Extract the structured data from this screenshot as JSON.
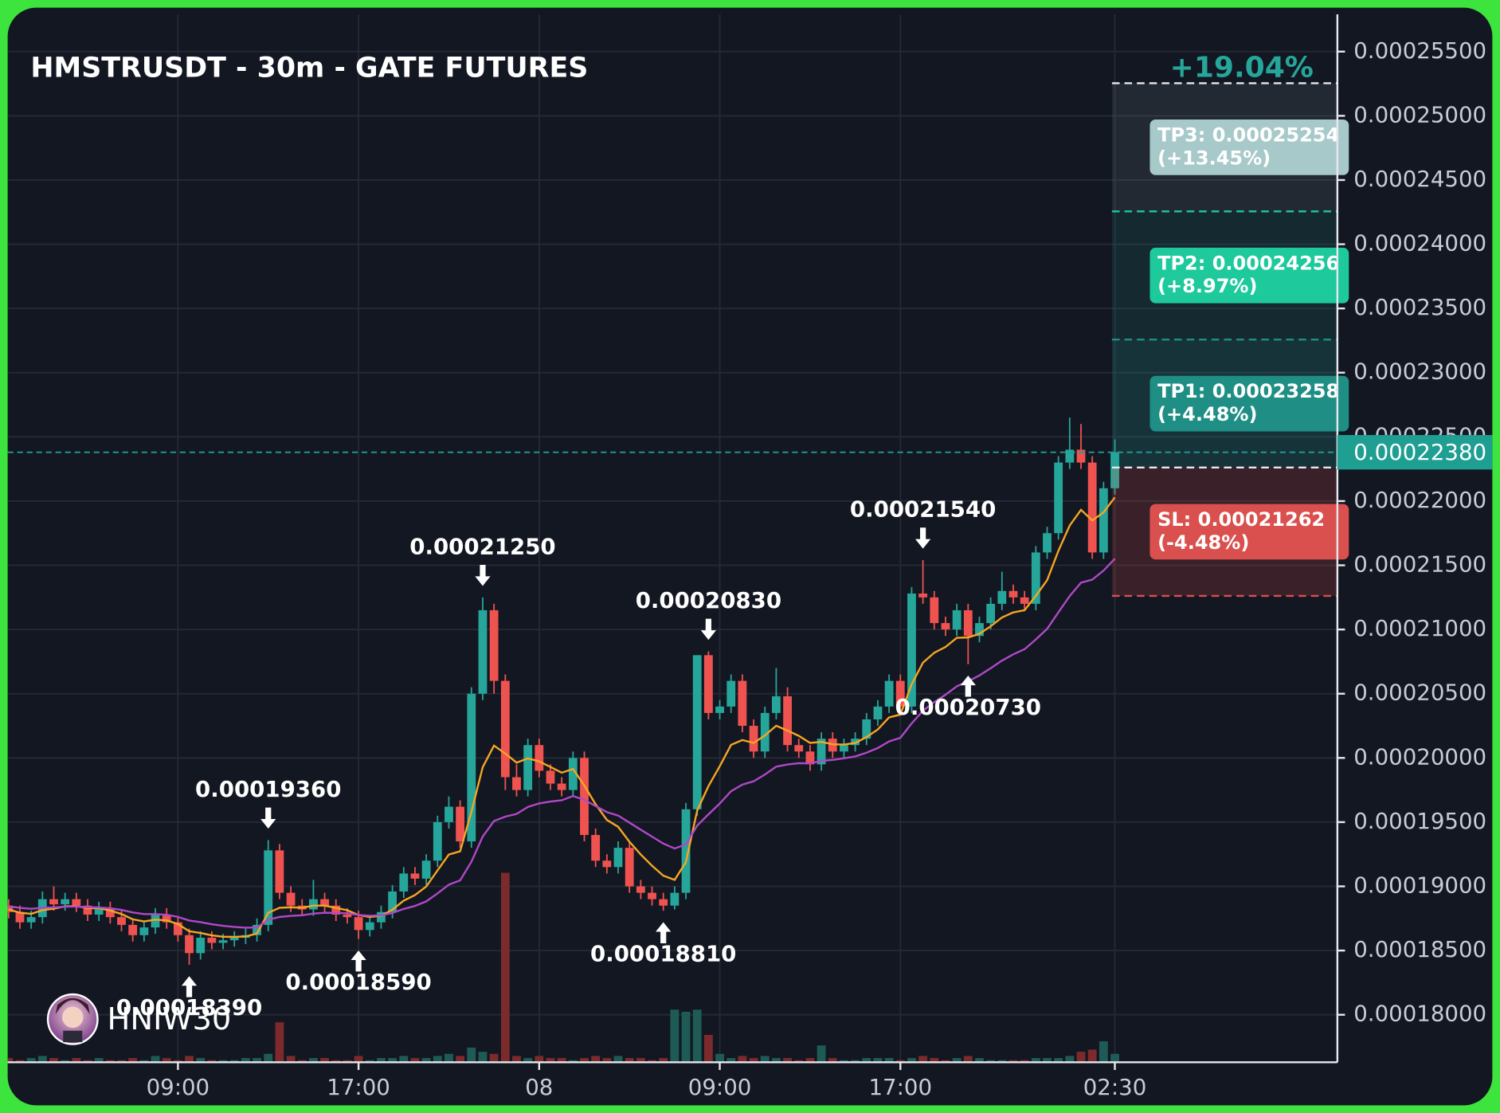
{
  "chart_data": {
    "type": "candlestick",
    "title": "HMSTRUSDT - 30m - GATE FUTURES",
    "categories": [
      null,
      null,
      null,
      null,
      null,
      null,
      null,
      null,
      null,
      null,
      null,
      null,
      null,
      null,
      null,
      "09:00",
      null,
      null,
      null,
      null,
      null,
      null,
      null,
      null,
      null,
      null,
      null,
      null,
      null,
      null,
      null,
      "17:00",
      null,
      null,
      null,
      null,
      null,
      null,
      null,
      null,
      null,
      null,
      null,
      null,
      null,
      null,
      null,
      "08",
      null,
      null,
      null,
      null,
      null,
      null,
      null,
      null,
      null,
      null,
      null,
      null,
      null,
      null,
      null,
      "09:00",
      null,
      null,
      null,
      null,
      null,
      null,
      null,
      null,
      null,
      null,
      null,
      null,
      null,
      null,
      null,
      "17:00",
      null,
      null,
      null,
      null,
      null,
      null,
      null,
      null,
      null,
      null,
      null,
      null,
      null,
      null,
      null,
      null,
      null,
      null,
      "02:30"
    ],
    "open": [
      0.0001885,
      0.000188,
      0.0001872,
      0.0001876,
      0.000189,
      0.0001886,
      0.000189,
      0.0001885,
      0.0001878,
      0.0001883,
      0.0001876,
      0.000187,
      0.0001862,
      0.0001868,
      0.0001878,
      0.0001872,
      0.0001862,
      0.0001848,
      0.000186,
      0.0001856,
      0.0001858,
      0.000186,
      0.0001862,
      0.000187,
      0.0001928,
      0.0001895,
      0.0001885,
      0.0001882,
      0.000189,
      0.0001885,
      0.0001878,
      0.0001876,
      0.0001866,
      0.0001872,
      0.000188,
      0.0001896,
      0.000191,
      0.0001906,
      0.000192,
      0.000195,
      0.0001962,
      0.0001935,
      0.000205,
      0.0002115,
      0.000206,
      0.0001985,
      0.0001975,
      0.000201,
      0.000199,
      0.000198,
      0.0001975,
      0.0002,
      0.000194,
      0.000192,
      0.0001915,
      0.000193,
      0.00019,
      0.0001895,
      0.000189,
      0.0001885,
      0.0001895,
      0.000196,
      0.000208,
      0.0002035,
      0.000204,
      0.000206,
      0.0002025,
      0.0002005,
      0.0002035,
      0.0002048,
      0.000201,
      0.0002005,
      0.0001995,
      0.0002015,
      0.0002005,
      0.000201,
      0.0002015,
      0.000203,
      0.000204,
      0.000206,
      0.000204,
      0.0002128,
      0.0002125,
      0.0002105,
      0.00021,
      0.0002115,
      0.0002095,
      0.0002105,
      0.000212,
      0.000213,
      0.0002125,
      0.000212,
      0.000216,
      0.0002175,
      0.000223,
      0.000224,
      0.000223,
      0.000216,
      0.000221
    ],
    "high": [
      0.000189,
      0.0001885,
      0.0001881,
      0.0001896,
      0.00019,
      0.0001895,
      0.0001895,
      0.000189,
      0.0001888,
      0.0001888,
      0.0001881,
      0.0001875,
      0.0001873,
      0.0001883,
      0.0001883,
      0.0001877,
      0.0001867,
      0.0001865,
      0.0001865,
      0.0001863,
      0.0001865,
      0.0001867,
      0.0001875,
      0.0001936,
      0.0001933,
      0.00019,
      0.000189,
      0.0001905,
      0.0001895,
      0.000189,
      0.0001883,
      0.0001881,
      0.0001877,
      0.0001885,
      0.0001901,
      0.0001915,
      0.0001915,
      0.0001925,
      0.0001955,
      0.000197,
      0.0001967,
      0.0002055,
      0.0002125,
      0.000212,
      0.0002065,
      0.0001995,
      0.0002015,
      0.0002015,
      0.0001995,
      0.0001985,
      0.0002005,
      0.0002005,
      0.0001945,
      0.0001925,
      0.0001935,
      0.0001935,
      0.0001905,
      0.00019,
      0.0001895,
      0.00019,
      0.0001965,
      0.000208,
      0.0002083,
      0.0002045,
      0.0002065,
      0.0002065,
      0.000203,
      0.000204,
      0.000207,
      0.0002055,
      0.0002015,
      0.000201,
      0.000202,
      0.000202,
      0.0002015,
      0.000202,
      0.0002035,
      0.0002045,
      0.0002065,
      0.0002065,
      0.0002133,
      0.0002154,
      0.000213,
      0.000211,
      0.000212,
      0.000212,
      0.000211,
      0.0002125,
      0.0002145,
      0.0002135,
      0.000213,
      0.0002165,
      0.000218,
      0.0002235,
      0.0002265,
      0.000226,
      0.0002235,
      0.0002215,
      0.0002248
    ],
    "low": [
      0.0001875,
      0.0001867,
      0.0001867,
      0.0001871,
      0.0001881,
      0.0001881,
      0.000188,
      0.0001873,
      0.0001873,
      0.0001871,
      0.0001865,
      0.0001857,
      0.0001857,
      0.0001863,
      0.0001867,
      0.0001857,
      0.0001839,
      0.0001843,
      0.0001851,
      0.0001851,
      0.0001853,
      0.0001855,
      0.0001857,
      0.0001865,
      0.000189,
      0.000188,
      0.0001877,
      0.0001877,
      0.000188,
      0.0001873,
      0.0001871,
      0.0001859,
      0.0001861,
      0.0001867,
      0.0001875,
      0.0001891,
      0.0001901,
      0.0001901,
      0.0001915,
      0.0001945,
      0.000193,
      0.000193,
      0.0002045,
      0.000205,
      0.0001975,
      0.000197,
      0.000197,
      0.0001985,
      0.0001975,
      0.000197,
      0.000197,
      0.0001935,
      0.0001915,
      0.000191,
      0.000191,
      0.0001895,
      0.000189,
      0.0001885,
      0.0001881,
      0.0001882,
      0.000189,
      0.0001955,
      0.000203,
      0.000203,
      0.0002035,
      0.000202,
      0.0002,
      0.0002,
      0.000203,
      0.0002005,
      0.0002,
      0.000199,
      0.000199,
      0.0002,
      0.0002,
      0.0002005,
      0.000201,
      0.0002025,
      0.0002035,
      0.0002035,
      0.0002035,
      0.000212,
      0.00021,
      0.0002095,
      0.0002095,
      0.0002073,
      0.000209,
      0.00021,
      0.0002115,
      0.000212,
      0.0002115,
      0.0002115,
      0.0002155,
      0.000217,
      0.0002225,
      0.0002225,
      0.0002155,
      0.0002155,
      0.0002205
    ],
    "close": [
      0.000188,
      0.0001872,
      0.0001876,
      0.000189,
      0.0001886,
      0.000189,
      0.0001885,
      0.0001878,
      0.0001883,
      0.0001876,
      0.000187,
      0.0001862,
      0.0001868,
      0.0001878,
      0.0001872,
      0.0001862,
      0.0001848,
      0.000186,
      0.0001856,
      0.0001858,
      0.000186,
      0.0001862,
      0.000187,
      0.0001928,
      0.0001895,
      0.0001885,
      0.0001882,
      0.000189,
      0.0001885,
      0.0001878,
      0.0001876,
      0.0001866,
      0.0001872,
      0.000188,
      0.0001896,
      0.000191,
      0.0001906,
      0.000192,
      0.000195,
      0.0001962,
      0.0001935,
      0.000205,
      0.0002115,
      0.000206,
      0.0001985,
      0.0001975,
      0.000201,
      0.000199,
      0.000198,
      0.0001975,
      0.0002,
      0.000194,
      0.000192,
      0.0001915,
      0.000193,
      0.00019,
      0.0001895,
      0.000189,
      0.0001885,
      0.0001895,
      0.000196,
      0.000208,
      0.0002035,
      0.000204,
      0.000206,
      0.0002025,
      0.0002005,
      0.0002035,
      0.0002048,
      0.000201,
      0.0002005,
      0.0001995,
      0.0002015,
      0.0002005,
      0.000201,
      0.0002015,
      0.000203,
      0.000204,
      0.000206,
      0.000204,
      0.0002128,
      0.0002125,
      0.0002105,
      0.00021,
      0.0002115,
      0.0002095,
      0.0002105,
      0.000212,
      0.000213,
      0.0002125,
      0.000212,
      0.000216,
      0.0002175,
      0.000223,
      0.000224,
      0.000223,
      0.000216,
      0.000221,
      0.0002238
    ],
    "up_color": "#26a69a",
    "down_color": "#ef5350",
    "volume": {
      "values": [
        2,
        1,
        2,
        3,
        2,
        1,
        2,
        1,
        2,
        1,
        1,
        2,
        1,
        3,
        2,
        1,
        3,
        2,
        1,
        1,
        1,
        2,
        2,
        4,
        19,
        3,
        1,
        2,
        2,
        1,
        1,
        3,
        1,
        2,
        2,
        3,
        2,
        2,
        3,
        4,
        3,
        7,
        5,
        4,
        90,
        3,
        2,
        3,
        2,
        2,
        1,
        2,
        3,
        2,
        3,
        2,
        2,
        1,
        2,
        25,
        24,
        25,
        13,
        4,
        2,
        3,
        2,
        3,
        2,
        2,
        1,
        2,
        8,
        2,
        1,
        1,
        2,
        2,
        2,
        1,
        2,
        3,
        2,
        1,
        2,
        3,
        2,
        1,
        1,
        1,
        1,
        2,
        2,
        2,
        3,
        5,
        6,
        10,
        4
      ],
      "ylim": [
        0,
        100
      ],
      "up_color": "#1e5b56",
      "down_color": "#7d2a2c"
    },
    "ma_lines": [
      {
        "color": "#f5a623",
        "values": [
          0.0001882,
          0.00018795,
          0.00018786,
          0.00018815,
          0.00018826,
          0.00018845,
          0.00018846,
          0.0001883,
          0.0001883,
          0.00018812,
          0.00018784,
          0.00018743,
          0.00018727,
          0.0001874,
          0.00018735,
          0.00018706,
          0.0001865,
          0.00018637,
          0.00018618,
          0.00018608,
          0.00018606,
          0.0001861,
          0.00018632,
          0.00018794,
          0.00018833,
          0.00018837,
          0.00018833,
          0.0001885,
          0.0001885,
          0.00018832,
          0.00018814,
          0.00018776,
          0.00018762,
          0.00018771,
          0.00018818,
          0.00018889,
          0.00018932,
          0.00018999,
          0.00019124,
          0.00019248,
          0.00019273,
          0.0001958,
          0.00019928,
          0.00020096,
          0.00020034,
          0.00019963,
          0.00019997,
          0.00019973,
          0.0001993,
          0.00019885,
          0.00019914,
          0.00019785,
          0.00019639,
          0.00019517,
          0.00019463,
          0.00019347,
          0.00019248,
          0.00019161,
          0.00019083,
          0.0001905,
          0.00019188,
          0.00019591,
          0.00019781,
          0.00019936,
          0.00020102,
          0.00020139,
          0.00020117,
          0.00020175,
          0.00020251,
          0.00020213,
          0.00020172,
          0.00020117,
          0.00020125,
          0.00020106,
          0.00020104,
          0.00020116,
          0.00020162,
          0.00020222,
          0.00020316,
          0.00020337,
          0.00020573,
          0.00020742,
          0.00020819,
          0.00020864,
          0.00020935,
          0.00020938,
          0.00020966,
          0.00021025,
          0.00021094,
          0.00021133,
          0.0002115,
          0.00021262,
          0.00021384,
          0.00021613,
          0.0002181,
          0.00021932,
          0.00021849,
          0.00021912,
          0.00022029
        ]
      },
      {
        "color": "#b048c8",
        "values": [
          0.00018845,
          0.00018832,
          0.00018825,
          0.00018833,
          0.00018836,
          0.00018842,
          0.00018843,
          0.00018837,
          0.00018836,
          0.00018829,
          0.00018816,
          0.00018796,
          0.00018784,
          0.00018784,
          0.00018778,
          0.00018762,
          0.00018734,
          0.00018721,
          0.00018705,
          0.00018693,
          0.00018684,
          0.00018678,
          0.0001868,
          0.0001874,
          0.00018761,
          0.0001877,
          0.00018775,
          0.00018788,
          0.00018794,
          0.00018793,
          0.0001879,
          0.00018777,
          0.00018771,
          0.00018774,
          0.00018793,
          0.00018824,
          0.00018848,
          0.00018883,
          0.00018945,
          0.00019013,
          0.00019047,
          0.00019192,
          0.00019388,
          0.00019509,
          0.00019543,
          0.00019564,
          0.00019618,
          0.00019646,
          0.00019661,
          0.0001967,
          0.00019703,
          0.00019673,
          0.00019626,
          0.00019578,
          0.00019551,
          0.00019496,
          0.00019441,
          0.00019387,
          0.00019333,
          0.00019295,
          0.00019326,
          0.00019473,
          0.00019561,
          0.00019645,
          0.00019741,
          0.00019792,
          0.00019818,
          0.00019871,
          0.00019932,
          0.00019949,
          0.00019959,
          0.00019958,
          0.00019977,
          0.00019985,
          0.00019997,
          0.00020012,
          0.00020041,
          0.00020077,
          0.00020129,
          0.00020156,
          0.00020269,
          0.00020367,
          0.00020435,
          0.00020492,
          0.00020558,
          0.00020597,
          0.00020642,
          0.00020698,
          0.00020758,
          0.00020807,
          0.00020846,
          0.00020922,
          0.00021005,
          0.00021134,
          0.00021261,
          0.00021365,
          0.00021388,
          0.00021459,
          0.00021551
        ]
      }
    ],
    "ylim": [
      0.0001763,
      0.0002579
    ],
    "yticks": [
      {
        "value": 0.00018,
        "label": "0.00018000"
      },
      {
        "value": 0.000185,
        "label": "0.00018500"
      },
      {
        "value": 0.00019,
        "label": "0.00019000"
      },
      {
        "value": 0.000195,
        "label": "0.00019500"
      },
      {
        "value": 0.0002,
        "label": "0.00020000"
      },
      {
        "value": 0.000205,
        "label": "0.00020500"
      },
      {
        "value": 0.00021,
        "label": "0.00021000"
      },
      {
        "value": 0.000215,
        "label": "0.00021500"
      },
      {
        "value": 0.00022,
        "label": "0.00022000"
      },
      {
        "value": 0.000225,
        "label": "0.00022500"
      },
      {
        "value": 0.00023,
        "label": "0.00023000"
      },
      {
        "value": 0.000235,
        "label": "0.00023500"
      },
      {
        "value": 0.00024,
        "label": "0.00024000"
      },
      {
        "value": 0.000245,
        "label": "0.00024500"
      },
      {
        "value": 0.00025,
        "label": "0.00025000"
      },
      {
        "value": 0.000255,
        "label": "0.00025500"
      }
    ],
    "grid": true,
    "last_price": {
      "value": 0.0002238,
      "label": "0.00022380",
      "color": "#1f9e92"
    },
    "annotations": [
      {
        "candle": 16,
        "side": "low",
        "label": "0.00018390"
      },
      {
        "candle": 23,
        "side": "high",
        "label": "0.00019360"
      },
      {
        "candle": 31,
        "side": "low",
        "label": "0.00018590"
      },
      {
        "candle": 42,
        "side": "high",
        "label": "0.00021250"
      },
      {
        "candle": 58,
        "side": "low",
        "label": "0.00018810"
      },
      {
        "candle": 62,
        "side": "high",
        "label": "0.00020830"
      },
      {
        "candle": 81,
        "side": "high",
        "label": "0.00021540"
      },
      {
        "candle": 85,
        "side": "low",
        "label": "0.00020730"
      }
    ],
    "position": {
      "total_label": "+19.04%",
      "entry": 0.00022261,
      "targets": [
        {
          "label": "TP1: 0.00023258",
          "value": 0.00023258,
          "change": "(+4.48%)",
          "color": "#1f8e84"
        },
        {
          "label": "TP2: 0.00024256",
          "value": 0.00024256,
          "change": "(+8.97%)",
          "color": "#1ec99c"
        },
        {
          "label": "TP3: 0.00025254",
          "value": 0.00025254,
          "change": "(+13.45%)",
          "color": "#a8c9c9"
        }
      ],
      "stop": {
        "label": "SL: 0.00021262",
        "value": 0.00021262,
        "change": "(-4.48%)",
        "color": "#d9504e"
      }
    },
    "watermark": "HNIW30"
  }
}
